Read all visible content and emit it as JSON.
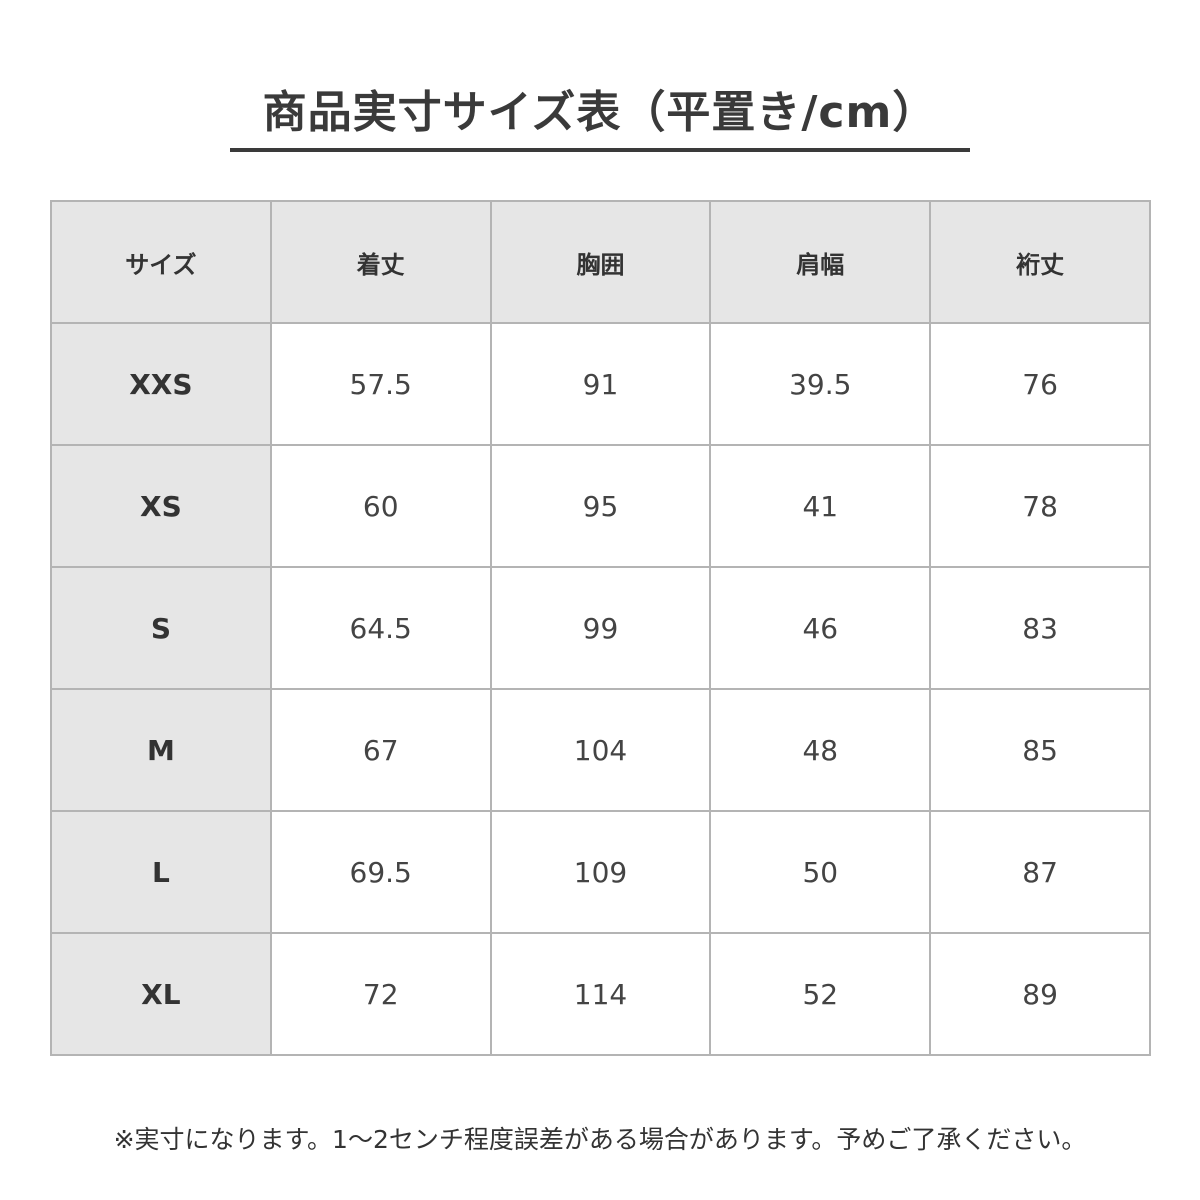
{
  "title": "商品実寸サイズ表（平置き/cm）",
  "table": {
    "headers": [
      "サイズ",
      "着丈",
      "胸囲",
      "肩幅",
      "裄丈"
    ],
    "rows": [
      [
        "XXS",
        "57.5",
        "91",
        "39.5",
        "76"
      ],
      [
        "XS",
        "60",
        "95",
        "41",
        "78"
      ],
      [
        "S",
        "64.5",
        "99",
        "46",
        "83"
      ],
      [
        "M",
        "67",
        "104",
        "48",
        "85"
      ],
      [
        "L",
        "69.5",
        "109",
        "50",
        "87"
      ],
      [
        "XL",
        "72",
        "114",
        "52",
        "89"
      ]
    ]
  },
  "note": "※実寸になります。1〜2センチ程度誤差がある場合があります。予めご了承ください。"
}
